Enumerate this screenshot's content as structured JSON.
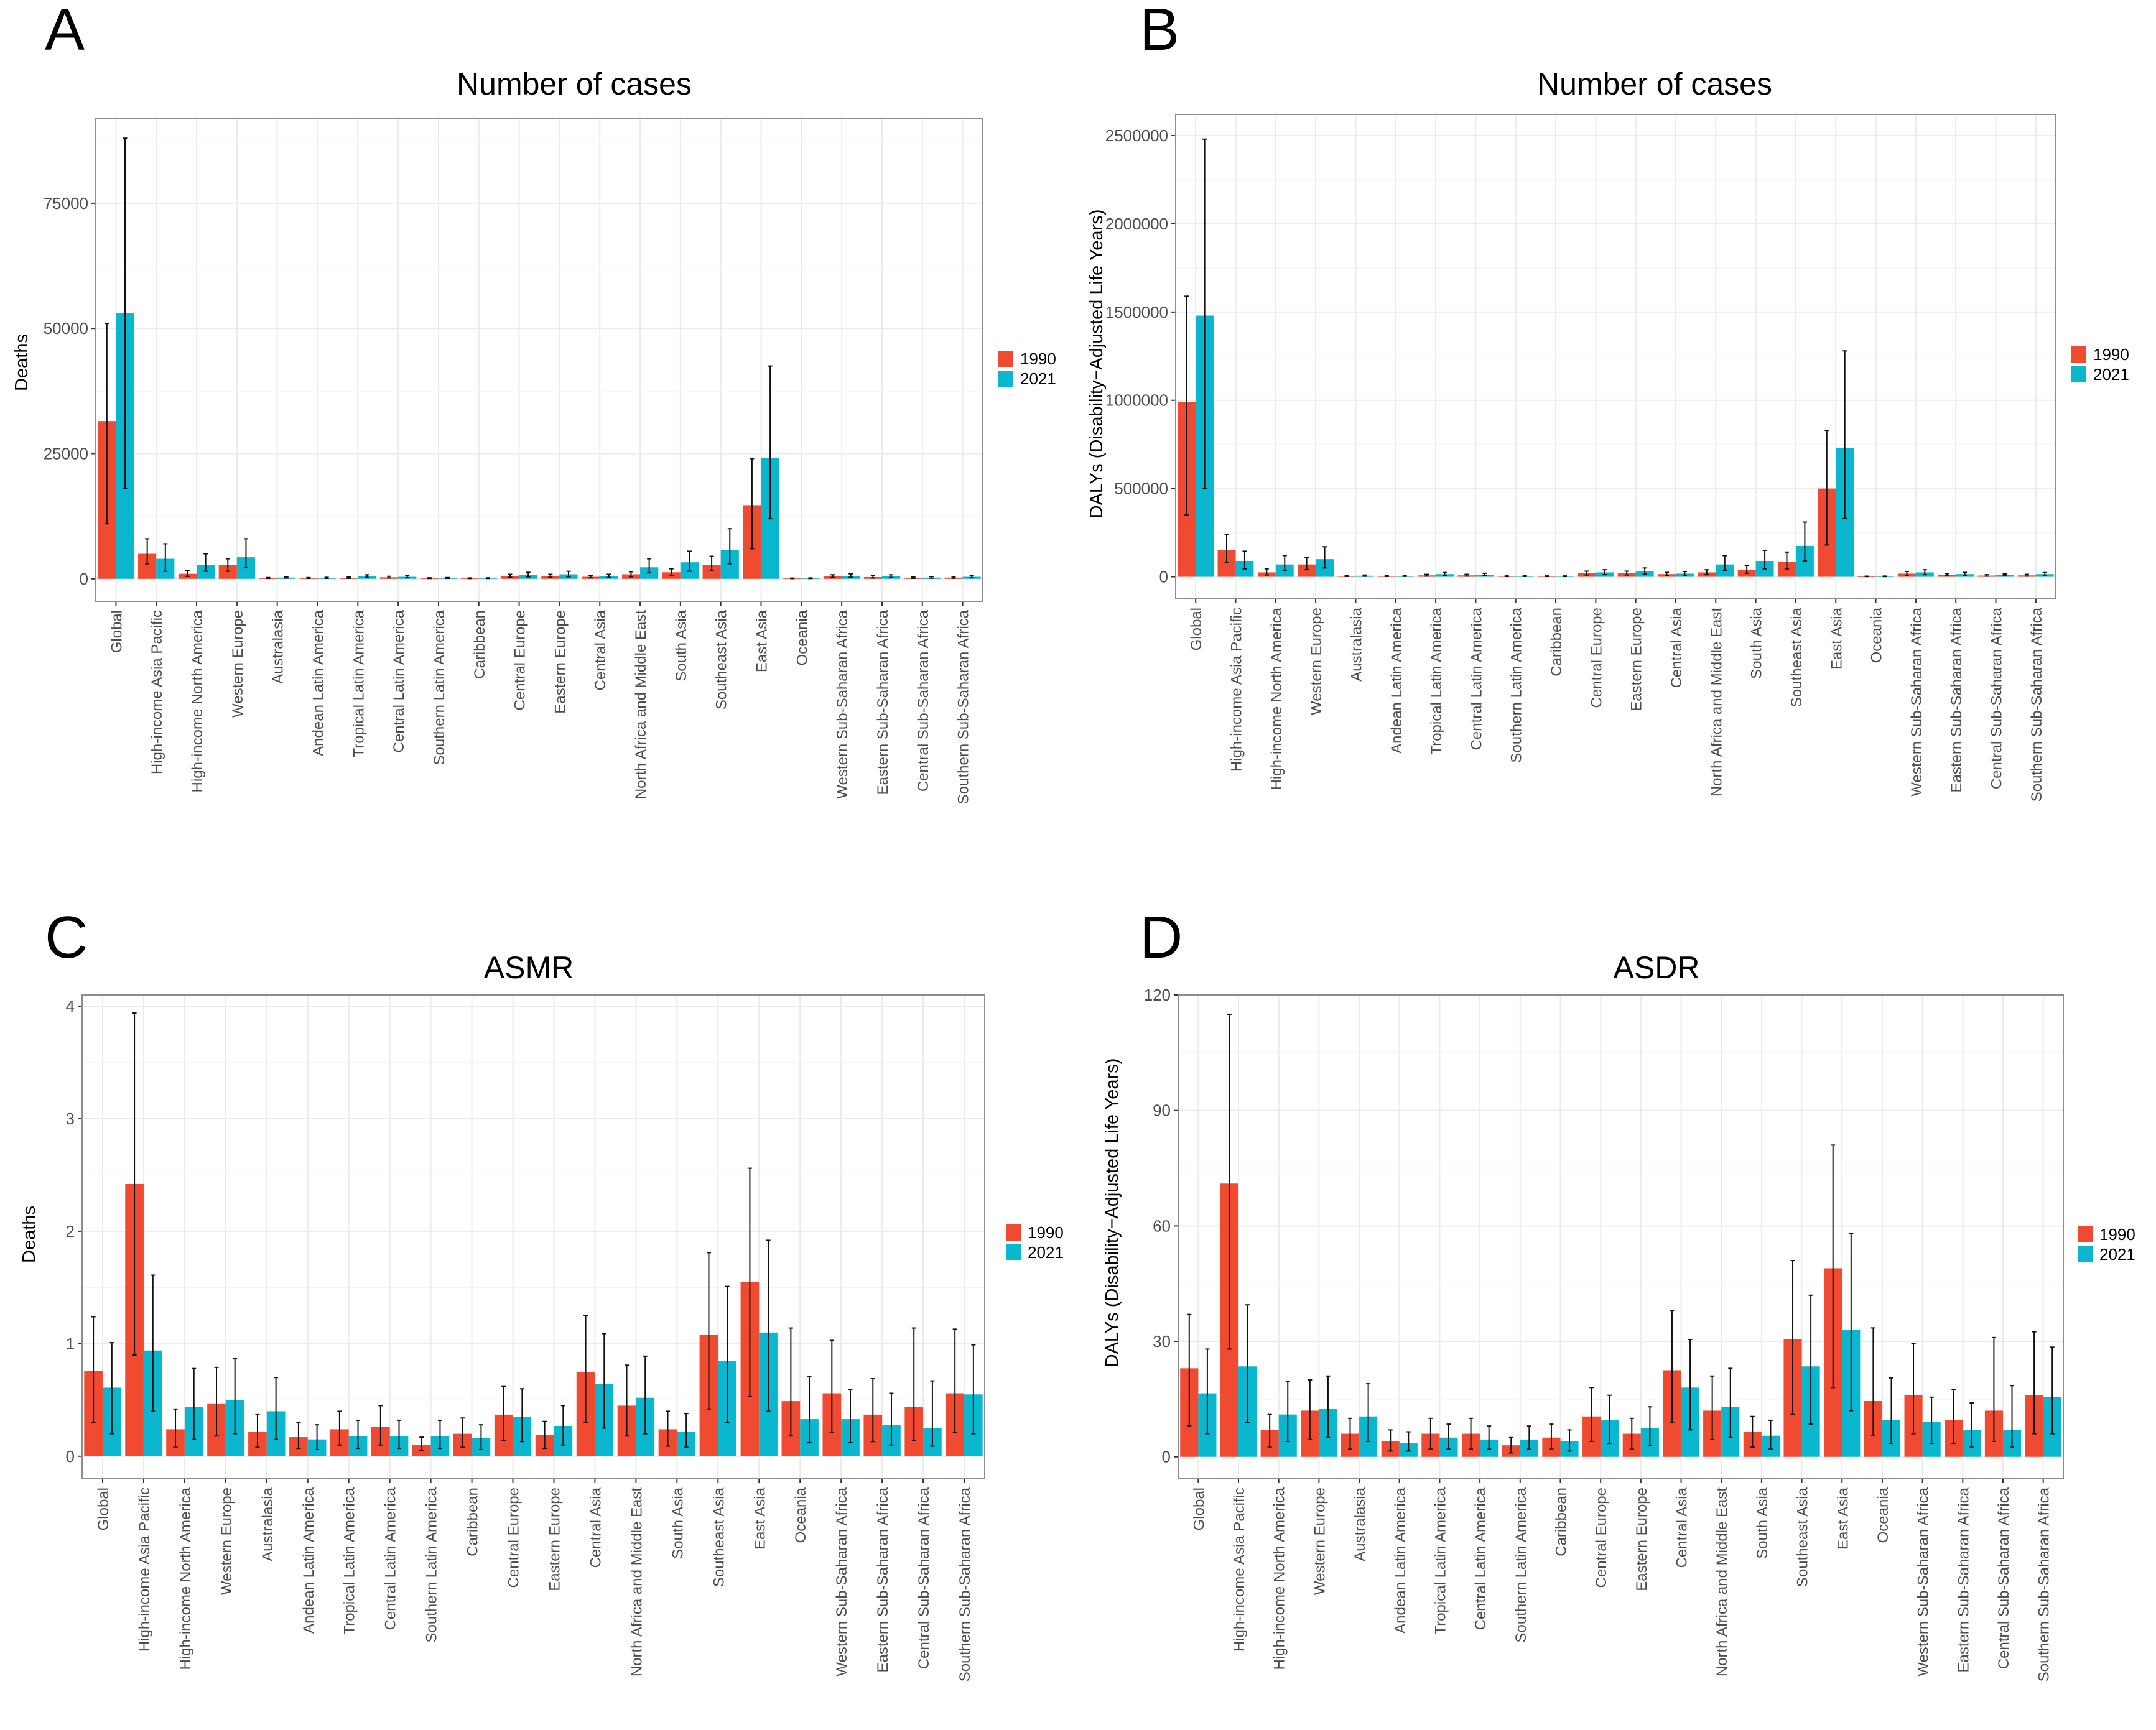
{
  "colors": {
    "s1990": "#F04A31",
    "s2021": "#0BB7CF",
    "panel_bg": "#FFFFFF",
    "grid": "#EBEBEB",
    "frame": "#8C8C8C"
  },
  "regions": [
    "Global",
    "High-income Asia Pacific",
    "High-income North America",
    "Western Europe",
    "Australasia",
    "Andean Latin America",
    "Tropical Latin America",
    "Central Latin America",
    "Southern Latin America",
    "Caribbean",
    "Central Europe",
    "Eastern Europe",
    "Central Asia",
    "North Africa and Middle East",
    "South Asia",
    "Southeast Asia",
    "East Asia",
    "Oceania",
    "Western Sub-Saharan Africa",
    "Eastern Sub-Saharan Africa",
    "Central Sub-Saharan Africa",
    "Southern Sub-Saharan Africa"
  ],
  "legend": {
    "y1990": "1990",
    "y2021": "2021"
  },
  "chart_data": [
    {
      "letter": "A",
      "type": "bar",
      "title": "Number of cases",
      "ylabel": "Deaths",
      "xlabel": "",
      "regions_order": [
        "Global",
        "High-income Asia Pacific",
        "High-income North America",
        "Western Europe",
        "Australasia",
        "Andean Latin America",
        "Tropical Latin America",
        "Central Latin America",
        "Southern Latin America",
        "Caribbean",
        "Central Europe",
        "Eastern Europe",
        "Central Asia",
        "North Africa and Middle East",
        "South Asia",
        "Southeast Asia",
        "East Asia",
        "Oceania",
        "Western Sub-Saharan Africa",
        "Eastern Sub-Saharan Africa",
        "Central Sub-Saharan Africa",
        "Southern Sub-Saharan Africa"
      ],
      "ylim": [
        -4500,
        92000
      ],
      "yticks": [
        0,
        25000,
        50000,
        75000
      ],
      "ytick_labels": [
        "0",
        "25000",
        "50000",
        "75000"
      ],
      "series": [
        {
          "name": "1990",
          "values": [
            31500,
            5000,
            1000,
            2700,
            150,
            150,
            200,
            300,
            120,
            100,
            600,
            600,
            400,
            900,
            1300,
            2800,
            14700,
            80,
            500,
            350,
            200,
            250
          ],
          "lower": [
            11000,
            3000,
            500,
            1500,
            80,
            80,
            100,
            150,
            60,
            50,
            300,
            300,
            200,
            400,
            700,
            1600,
            6000,
            40,
            250,
            150,
            100,
            120
          ],
          "upper": [
            51000,
            8000,
            1600,
            4000,
            250,
            250,
            350,
            500,
            200,
            180,
            900,
            900,
            700,
            1400,
            2000,
            4500,
            24000,
            150,
            800,
            600,
            350,
            400
          ]
        },
        {
          "name": "2021",
          "values": [
            53000,
            4000,
            2800,
            4300,
            250,
            180,
            500,
            400,
            150,
            120,
            800,
            900,
            500,
            2300,
            3300,
            5700,
            24200,
            100,
            600,
            500,
            250,
            400
          ],
          "lower": [
            18000,
            1500,
            1500,
            2200,
            150,
            100,
            250,
            200,
            80,
            60,
            400,
            400,
            250,
            1200,
            1500,
            3000,
            12000,
            50,
            300,
            250,
            120,
            200
          ],
          "upper": [
            88000,
            7000,
            5000,
            8000,
            400,
            300,
            800,
            700,
            250,
            200,
            1300,
            1500,
            900,
            4000,
            5500,
            10000,
            42500,
            180,
            1000,
            800,
            450,
            650
          ]
        }
      ]
    },
    {
      "letter": "B",
      "type": "bar",
      "title": "Number of cases",
      "ylabel": "DALYs (Disability−Adjusted Life Years)",
      "xlabel": "",
      "regions_order": [
        "Global",
        "High-income Asia Pacific",
        "High-income North America",
        "Western Europe",
        "Australasia",
        "Andean Latin America",
        "Tropical Latin America",
        "Central Latin America",
        "Southern Latin America",
        "Caribbean",
        "Central Europe",
        "Eastern Europe",
        "Central Asia",
        "North Africa and Middle East",
        "South Asia",
        "Southeast Asia",
        "East Asia",
        "Oceania",
        "Western Sub-Saharan Africa",
        "Eastern Sub-Saharan Africa",
        "Central Sub-Saharan Africa",
        "Southern Sub-Saharan Africa"
      ],
      "ylim": [
        -125000,
        2620000
      ],
      "yticks": [
        0,
        500000,
        1000000,
        1500000,
        2000000,
        2500000
      ],
      "ytick_labels": [
        "0",
        "500000",
        "1000000",
        "1500000",
        "2000000",
        "2500000"
      ],
      "series": [
        {
          "name": "1990",
          "values": [
            990000,
            150000,
            25000,
            70000,
            5000,
            4000,
            8000,
            8000,
            3000,
            3000,
            20000,
            20000,
            15000,
            25000,
            40000,
            85000,
            500000,
            2000,
            18000,
            10000,
            7000,
            8000
          ],
          "lower": [
            350000,
            80000,
            10000,
            40000,
            2000,
            2000,
            4000,
            4000,
            1500,
            1500,
            10000,
            10000,
            8000,
            12000,
            20000,
            45000,
            180000,
            1000,
            9000,
            5000,
            3500,
            4000
          ],
          "upper": [
            1590000,
            240000,
            45000,
            110000,
            9000,
            7000,
            14000,
            14000,
            5000,
            5000,
            32000,
            32000,
            25000,
            40000,
            65000,
            140000,
            830000,
            3500,
            30000,
            18000,
            12000,
            14000
          ]
        },
        {
          "name": "2021",
          "values": [
            1480000,
            90000,
            70000,
            100000,
            6000,
            5000,
            15000,
            12000,
            4000,
            3000,
            25000,
            30000,
            18000,
            70000,
            90000,
            175000,
            730000,
            2500,
            25000,
            15000,
            10000,
            15000
          ],
          "lower": [
            500000,
            45000,
            35000,
            50000,
            3000,
            2500,
            8000,
            6000,
            2000,
            1500,
            12000,
            15000,
            9000,
            35000,
            45000,
            90000,
            330000,
            1200,
            12000,
            7000,
            5000,
            7000
          ],
          "upper": [
            2480000,
            145000,
            120000,
            170000,
            10000,
            9000,
            24000,
            20000,
            7000,
            5000,
            40000,
            50000,
            30000,
            120000,
            150000,
            310000,
            1280000,
            4000,
            40000,
            25000,
            16000,
            24000
          ]
        }
      ]
    },
    {
      "letter": "C",
      "type": "bar",
      "title": "ASMR",
      "ylabel": "Deaths",
      "xlabel": "",
      "regions_order": [
        "Global",
        "High-income Asia Pacific",
        "High-income North America",
        "Western Europe",
        "Australasia",
        "Andean Latin America",
        "Tropical Latin America",
        "Central Latin America",
        "Southern Latin America",
        "Caribbean",
        "Central Europe",
        "Eastern Europe",
        "Central Asia",
        "North Africa and Middle East",
        "South Asia",
        "Southeast Asia",
        "East Asia",
        "Oceania",
        "Western Sub-Saharan Africa",
        "Eastern Sub-Saharan Africa",
        "Central Sub-Saharan Africa",
        "Southern Sub-Saharan Africa"
      ],
      "ylim": [
        -0.2,
        4.1
      ],
      "yticks": [
        0,
        1,
        2,
        3,
        4
      ],
      "ytick_labels": [
        "0",
        "1",
        "2",
        "3",
        "4"
      ],
      "series": [
        {
          "name": "1990",
          "values": [
            0.76,
            2.42,
            0.24,
            0.47,
            0.22,
            0.17,
            0.24,
            0.26,
            0.1,
            0.2,
            0.37,
            0.19,
            0.75,
            0.45,
            0.24,
            1.08,
            1.55,
            0.49,
            0.56,
            0.37,
            0.44,
            0.56
          ],
          "lower": [
            0.3,
            0.9,
            0.08,
            0.18,
            0.08,
            0.07,
            0.1,
            0.1,
            0.05,
            0.08,
            0.14,
            0.07,
            0.3,
            0.18,
            0.09,
            0.42,
            0.53,
            0.18,
            0.21,
            0.13,
            0.14,
            0.21
          ],
          "upper": [
            1.24,
            3.94,
            0.42,
            0.79,
            0.37,
            0.3,
            0.4,
            0.45,
            0.17,
            0.34,
            0.62,
            0.31,
            1.25,
            0.81,
            0.4,
            1.81,
            2.56,
            1.14,
            1.03,
            0.69,
            1.14,
            1.13
          ]
        },
        {
          "name": "2021",
          "values": [
            0.61,
            0.94,
            0.44,
            0.5,
            0.4,
            0.15,
            0.18,
            0.18,
            0.18,
            0.16,
            0.35,
            0.27,
            0.64,
            0.52,
            0.22,
            0.85,
            1.1,
            0.33,
            0.33,
            0.28,
            0.25,
            0.55
          ],
          "lower": [
            0.2,
            0.4,
            0.15,
            0.2,
            0.15,
            0.06,
            0.07,
            0.07,
            0.07,
            0.06,
            0.13,
            0.1,
            0.25,
            0.2,
            0.08,
            0.3,
            0.4,
            0.12,
            0.12,
            0.1,
            0.09,
            0.2
          ],
          "upper": [
            1.01,
            1.61,
            0.78,
            0.87,
            0.7,
            0.28,
            0.32,
            0.32,
            0.32,
            0.28,
            0.6,
            0.45,
            1.09,
            0.89,
            0.38,
            1.51,
            1.92,
            0.71,
            0.59,
            0.56,
            0.67,
            0.99
          ]
        }
      ]
    },
    {
      "letter": "D",
      "type": "bar",
      "title": "ASDR",
      "ylabel": "DALYs (Disability−Adjusted Life Years)",
      "xlabel": "",
      "regions_order": [
        "Global",
        "High-income Asia Pacific",
        "High-income North America",
        "Western Europe",
        "Australasia",
        "Andean Latin America",
        "Tropical Latin America",
        "Central Latin America",
        "Southern Latin America",
        "Caribbean",
        "Central Europe",
        "Eastern Europe",
        "Central Asia",
        "North Africa and Middle East",
        "South Asia",
        "Southeast Asia",
        "East Asia",
        "Oceania",
        "Western Sub-Saharan Africa",
        "Eastern Sub-Saharan Africa",
        "Central Sub-Saharan Africa",
        "Southern Sub-Saharan Africa"
      ],
      "ylim": [
        -5.7,
        120
      ],
      "yticks": [
        0,
        30,
        60,
        90,
        120
      ],
      "ytick_labels": [
        "0",
        "30",
        "60",
        "90",
        "120"
      ],
      "series": [
        {
          "name": "1990",
          "values": [
            23,
            71,
            7,
            12,
            6,
            4,
            6,
            6,
            3,
            5,
            10.5,
            6,
            22.5,
            12,
            6.5,
            30.5,
            49,
            14.5,
            16,
            9.5,
            12,
            16
          ],
          "lower": [
            8,
            28,
            2.5,
            4.5,
            2,
            1.5,
            2,
            2,
            1,
            2,
            4,
            2,
            9,
            4.5,
            2.5,
            11,
            18,
            5.5,
            6,
            3.5,
            4,
            6
          ],
          "upper": [
            37,
            115,
            11,
            20,
            10,
            7,
            10,
            10,
            5,
            8.5,
            18,
            10,
            38,
            21,
            10.5,
            51,
            81,
            33.5,
            29.5,
            17.5,
            31,
            32.5
          ]
        },
        {
          "name": "2021",
          "values": [
            16.5,
            23.5,
            11,
            12.5,
            10.5,
            3.5,
            5,
            4.5,
            4.5,
            4,
            9.5,
            7.5,
            18,
            13,
            5.5,
            23.5,
            33,
            9.5,
            9,
            7,
            7,
            15.5
          ],
          "lower": [
            6,
            9,
            4,
            5,
            4,
            1.5,
            2,
            2,
            2,
            1.5,
            3.5,
            3,
            7,
            5,
            2,
            8.5,
            12,
            3.5,
            3.5,
            2.5,
            2.5,
            6
          ],
          "upper": [
            28,
            39.5,
            19.5,
            21,
            19,
            6.5,
            8.5,
            8,
            8,
            7,
            16,
            13,
            30.5,
            23,
            9.5,
            42,
            58,
            20.5,
            15.5,
            14,
            18.5,
            28.5
          ]
        }
      ]
    }
  ]
}
